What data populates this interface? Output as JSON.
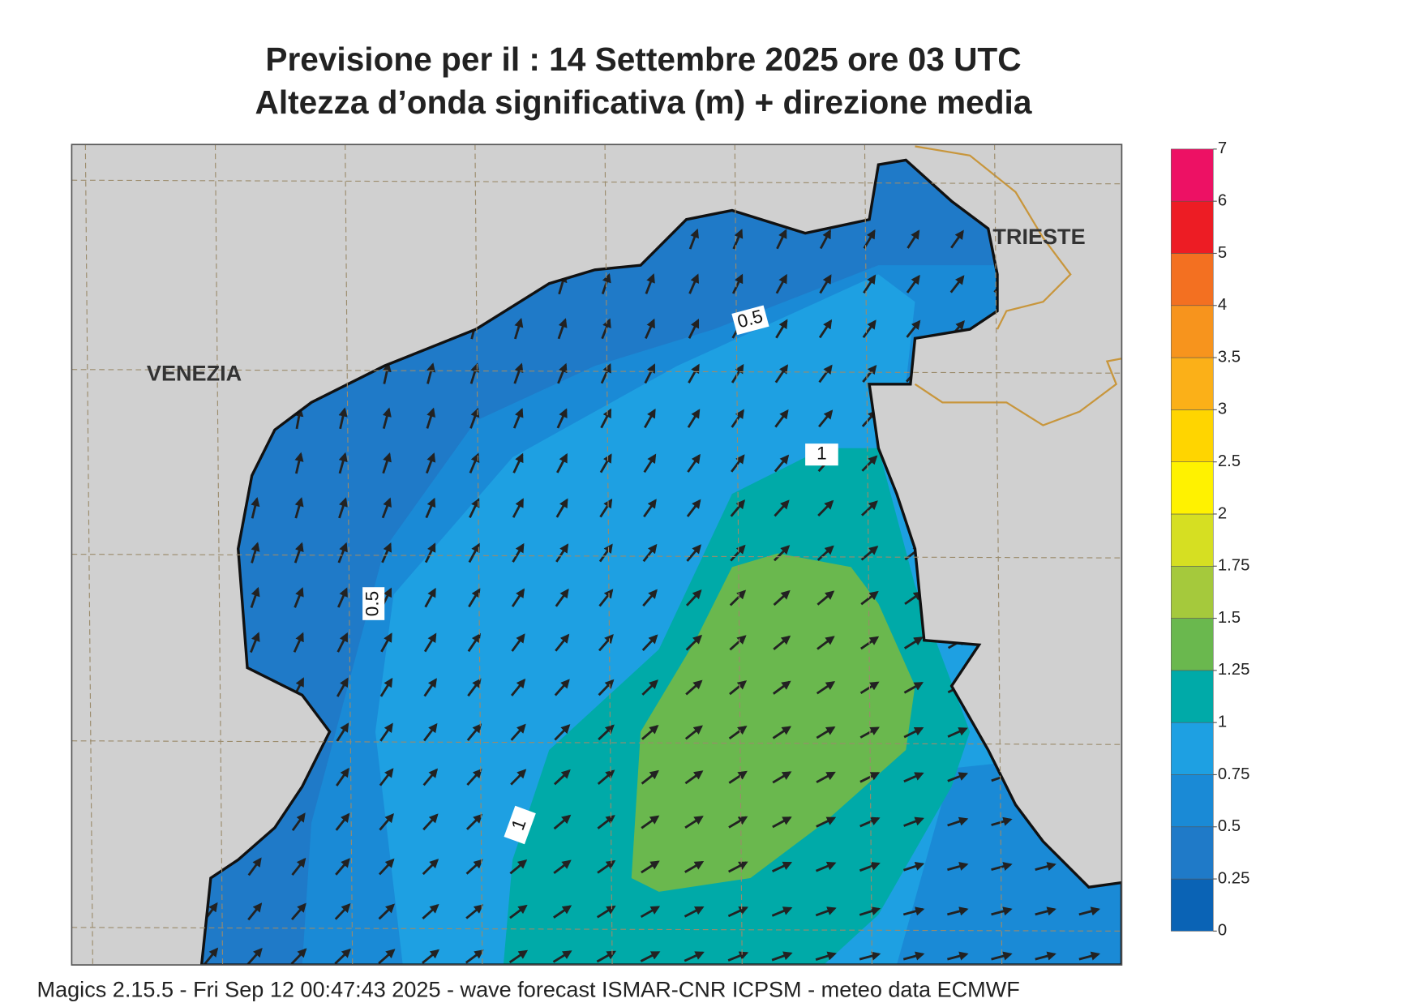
{
  "header": {
    "title": "Previsione per il  :  14 Settembre 2025   ore 03 UTC",
    "subtitle": "Altezza d’onda significativa (m) + direzione media"
  },
  "map": {
    "places": [
      "VENEZIA",
      "TRIESTE"
    ],
    "contour_labels": [
      0.5,
      0.5,
      1,
      1
    ]
  },
  "colorbar": {
    "ticks": [
      0,
      0.25,
      0.5,
      0.75,
      1,
      1.25,
      1.5,
      1.75,
      2,
      2.5,
      3,
      3.5,
      4,
      5,
      6,
      7
    ],
    "colors": [
      "#0a63b5",
      "#1f7ac8",
      "#1a8ad6",
      "#1ea0e2",
      "#00aaa8",
      "#6ab84e",
      "#a5c93c",
      "#d6df22",
      "#fff200",
      "#ffd500",
      "#fbb018",
      "#f7941d",
      "#f37021",
      "#ed1c24",
      "#ed1164"
    ]
  },
  "footer": "Magics 2.15.5 - Fri Sep 12 00:47:43 2025 - wave forecast  ISMAR-CNR  ICPSM - meteo data    ECMWF"
}
